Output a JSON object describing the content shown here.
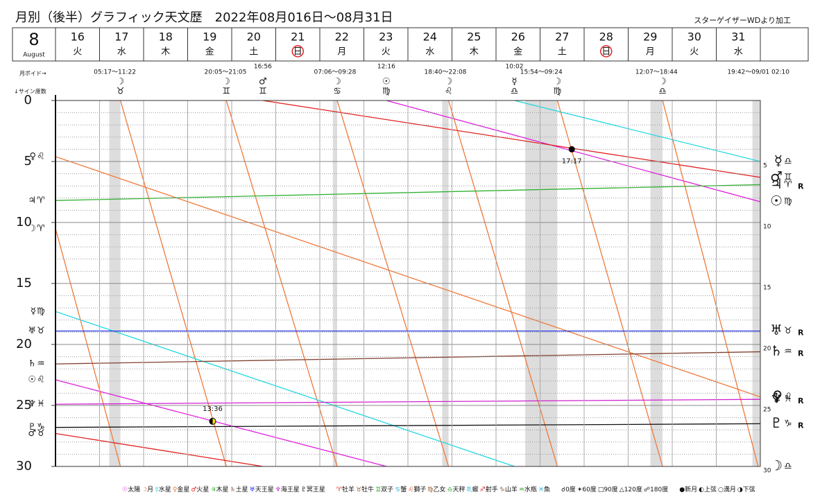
{
  "chart_data": {
    "type": "line",
    "title": "月別（後半）グラフィック天文歴　2022年08月016日～08月31日",
    "credit": "スターゲイザーWDより加工",
    "month": 8,
    "month_name": "August",
    "void_label": "月ボイド→",
    "degree_label": "↓サイン度数",
    "xlim": [
      16,
      32
    ],
    "xticks": [
      16,
      17,
      18,
      19,
      20,
      21,
      22,
      23,
      24,
      25,
      26,
      27,
      28,
      29,
      30,
      31
    ],
    "weekdays": [
      "火",
      "水",
      "木",
      "金",
      "土",
      "日",
      "月",
      "火",
      "水",
      "木",
      "金",
      "土",
      "日",
      "月",
      "火",
      "水"
    ],
    "weekday_colors": [
      "#111",
      "#111",
      "#111",
      "#111",
      "#2030d0",
      "#e02020",
      "#111",
      "#111",
      "#111",
      "#111",
      "#111",
      "#2030d0",
      "#e02020",
      "#111",
      "#111",
      "#111"
    ],
    "ylim": [
      0,
      30
    ],
    "yticks": [
      0,
      5,
      10,
      15,
      20,
      25,
      30
    ],
    "minor_yticks": [
      1,
      2,
      3,
      4,
      6,
      7,
      8,
      9,
      11,
      12,
      13,
      14,
      16,
      17,
      18,
      19,
      21,
      22,
      23,
      24,
      26,
      27,
      28,
      29
    ],
    "grid": true,
    "voids": [
      {
        "label": "05:17～11:22",
        "start": 17.22,
        "end": 17.474
      },
      {
        "label": "20:05～21:05",
        "start": 19.837,
        "end": 19.878
      },
      {
        "label": "07:06～09:28",
        "start": 22.296,
        "end": 22.394
      },
      {
        "label": "18:40～22:08",
        "start": 24.778,
        "end": 24.922
      },
      {
        "label": "15:54～09:24",
        "start": 26.663,
        "end": 27.392
      },
      {
        "label": "12:07～18:44",
        "start": 29.505,
        "end": 29.781
      },
      {
        "label": "19:42～09/01 02:10",
        "start": 31.821,
        "end": 32.09
      }
    ],
    "ingresses": [
      {
        "body": "☽",
        "sign": "♉",
        "x": 17.474
      },
      {
        "body": "☽",
        "sign": "♊",
        "x": 19.878
      },
      {
        "body": "♂",
        "sign": "♊",
        "x": 20.706,
        "time": "16:56"
      },
      {
        "body": "☽",
        "sign": "♋",
        "x": 22.394
      },
      {
        "body": "☉",
        "sign": "♍",
        "x": 23.51,
        "time": "12:16"
      },
      {
        "body": "☽",
        "sign": "♌",
        "x": 24.922
      },
      {
        "body": "☿",
        "sign": "♎",
        "x": 26.418,
        "time": "10:02"
      },
      {
        "body": "☽",
        "sign": "♍",
        "x": 27.392
      },
      {
        "body": "☽",
        "sign": "♎",
        "x": 29.781
      }
    ],
    "phases": [
      {
        "time": "13:36",
        "x": 19.567,
        "value": 26.3,
        "phase": "first"
      },
      {
        "time": "17:17",
        "x": 27.72,
        "value": 4.0,
        "phase": "new"
      }
    ],
    "series": [
      {
        "symbol": "☉",
        "name": "太陽",
        "color": "#e020e0",
        "left_sign": "♌",
        "right_sign": "♍",
        "x": [
          16,
          23.51,
          23.51,
          23.51,
          32
        ],
        "values": [
          22.9,
          30,
          null,
          0,
          8.3
        ]
      },
      {
        "symbol": "☽",
        "name": "月",
        "color": "#f07838",
        "left_sign": "♈",
        "right_sign": "♎",
        "x": [
          16,
          17.474,
          17.474,
          17.474,
          19.878,
          19.878,
          19.878,
          22.394,
          22.394,
          22.394,
          24.922,
          24.922,
          24.922,
          27.392,
          27.392,
          27.392,
          29.781,
          29.781,
          29.781,
          31.95
        ],
        "values": [
          10.5,
          30,
          null,
          0,
          30,
          null,
          0,
          30,
          null,
          0,
          30,
          null,
          0,
          30,
          null,
          0,
          30,
          null,
          0,
          30
        ]
      },
      {
        "symbol": "☿",
        "name": "水星",
        "color": "#20d8e0",
        "left_sign": "♍",
        "right_sign": "♎",
        "x": [
          16,
          26.418,
          26.418,
          26.418,
          32
        ],
        "values": [
          17.3,
          30,
          null,
          0,
          5
        ]
      },
      {
        "symbol": "♀",
        "name": "金星",
        "color": "#f07838",
        "left_sign": "♌",
        "right_sign": "♌",
        "x": [
          16,
          32
        ],
        "values": [
          4.6,
          24.3
        ]
      },
      {
        "symbol": "♂",
        "name": "火星",
        "color": "#e02020",
        "left_sign": "♉",
        "right_sign": "♊",
        "x": [
          16,
          20.706,
          20.706,
          20.706,
          32
        ],
        "values": [
          27.3,
          30,
          null,
          0,
          6.3
        ]
      },
      {
        "symbol": "♃",
        "name": "木星",
        "color": "#30b030",
        "left_sign": "♈",
        "right_sign": "♈",
        "right_note": "R",
        "x": [
          16,
          32
        ],
        "values": [
          8.2,
          6.9
        ]
      },
      {
        "symbol": "♄",
        "name": "土星",
        "color": "#804030",
        "left_sign": "♒",
        "right_sign": "♒",
        "right_note": "R",
        "x": [
          16,
          32
        ],
        "values": [
          21.6,
          20.6
        ]
      },
      {
        "symbol": "♅",
        "name": "天王星",
        "color": "#2030e0",
        "left_sign": "♉",
        "right_sign": "♉",
        "right_note": "R",
        "x": [
          16,
          32
        ],
        "values": [
          18.9,
          18.9
        ]
      },
      {
        "symbol": "♆",
        "name": "海王星",
        "color": "#d020d0",
        "left_sign": "♓",
        "right_sign": "♓",
        "right_note": "R",
        "x": [
          16,
          32
        ],
        "values": [
          24.9,
          24.5
        ]
      },
      {
        "symbol": "♇",
        "name": "冥王星",
        "color": "#111111",
        "left_sign": "♑",
        "right_sign": "♑",
        "right_note": "R",
        "x": [
          16,
          32
        ],
        "values": [
          26.8,
          26.5
        ]
      }
    ],
    "signs": [
      {
        "symbol": "♈",
        "name": "牡羊",
        "color": "#e02020"
      },
      {
        "symbol": "♉",
        "name": "牡牛",
        "color": "#905020"
      },
      {
        "symbol": "♊",
        "name": "双子",
        "color": "#20a020"
      },
      {
        "symbol": "♋",
        "name": "蟹",
        "color": "#20b0d0"
      },
      {
        "symbol": "♌",
        "name": "獅子",
        "color": "#e04010"
      },
      {
        "symbol": "♍",
        "name": "乙女",
        "color": "#905020"
      },
      {
        "symbol": "♎",
        "name": "天秤",
        "color": "#20a020"
      },
      {
        "symbol": "♏",
        "name": "蠍",
        "color": "#20b0d0"
      },
      {
        "symbol": "♐",
        "name": "射手",
        "color": "#e02020"
      },
      {
        "symbol": "♑",
        "name": "山羊",
        "color": "#905020"
      },
      {
        "symbol": "♒",
        "name": "水瓶",
        "color": "#20a020"
      },
      {
        "symbol": "♓",
        "name": "魚",
        "color": "#20b0d0"
      }
    ],
    "aspects": [
      {
        "symbol": "☌",
        "name": "0度"
      },
      {
        "symbol": "✶",
        "name": "60度"
      },
      {
        "symbol": "□",
        "name": "90度"
      },
      {
        "symbol": "△",
        "name": "120度"
      },
      {
        "symbol": "☍",
        "name": "180度"
      }
    ],
    "moon_phases": [
      {
        "symbol": "●",
        "name": "新月"
      },
      {
        "symbol": "◐",
        "name": "上弦"
      },
      {
        "symbol": "○",
        "name": "満月"
      },
      {
        "symbol": "◑",
        "name": "下弦"
      }
    ]
  }
}
